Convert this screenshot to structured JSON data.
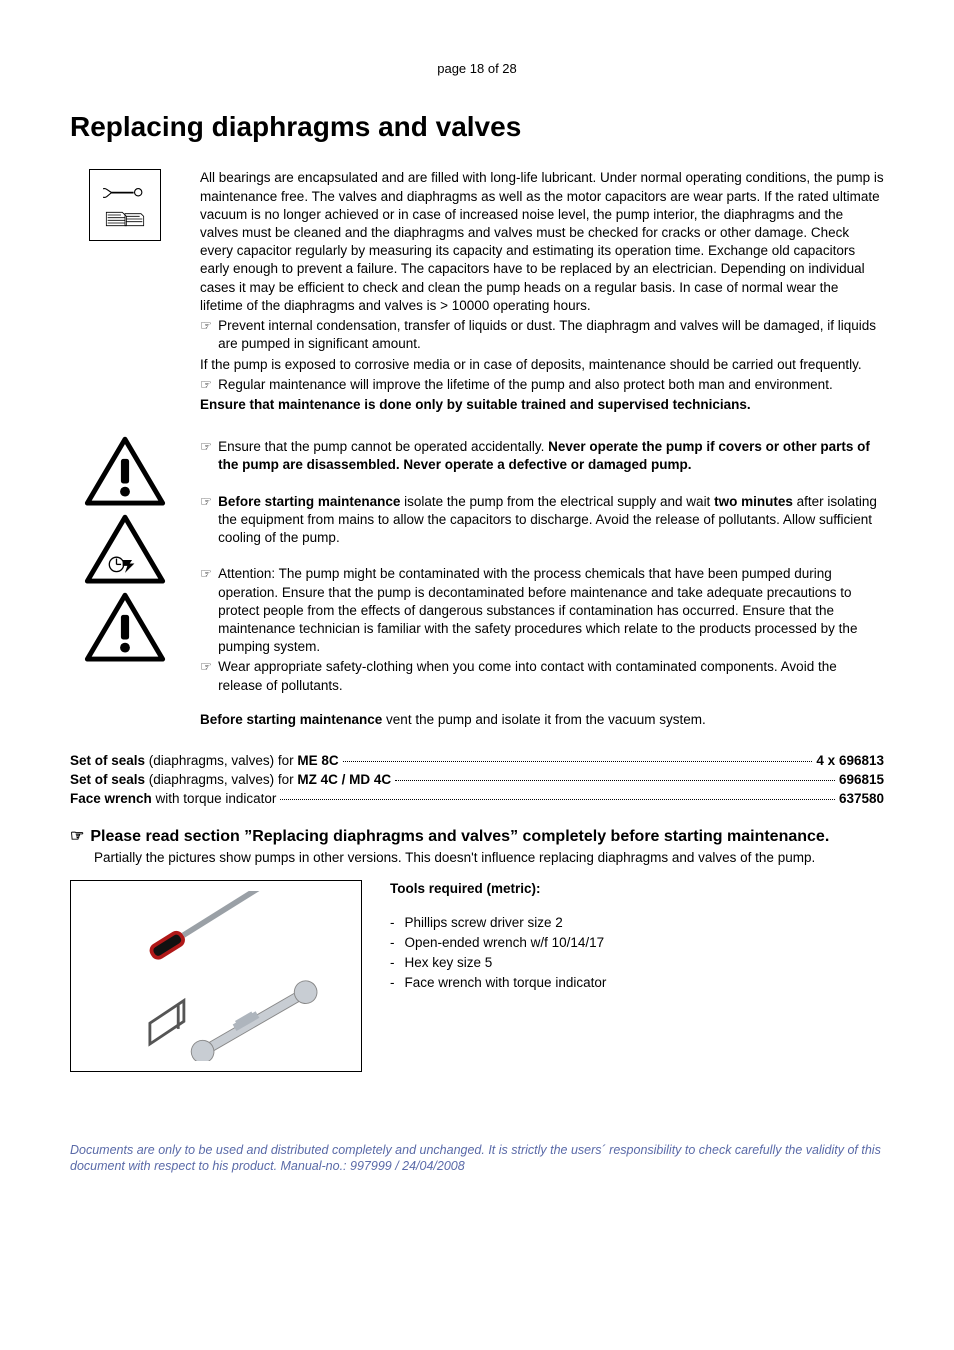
{
  "page_head": "page 18 of 28",
  "title": "Replacing diaphragms and valves",
  "intro_para": "All bearings are encapsulated and are filled with long-life lubricant. Under normal operating conditions, the pump is maintenance free. The valves and diaphragms as well as the motor capacitors are wear parts. If the rated ultimate vacuum is no longer achieved or in case of increased noise level, the pump interior, the diaphragms and the valves must be cleaned and the diaphragms and valves must be checked for cracks or other damage. Check every capacitor regularly by measuring its capacity and estimating its operation time. Exchange old capacitors early enough to prevent a failure. The capacitors have to be replaced by an electrician. Depending on individual cases it may be efficient to check and clean the pump heads on a regular basis. In case of normal wear the lifetime of the diaphragms and valves is > 10000 operating hours.",
  "b1": "Prevent internal condensation, transfer of liquids or dust. The diaphragm and valves will be damaged, if liquids are pumped in significant amount.",
  "p2": "If the pump is exposed to corrosive media or in case of deposits, maintenance should be carried out frequently.",
  "b2": "Regular maintenance will improve the lifetime of the pump and also protect both man and environment.",
  "bold_line": "Ensure that maintenance is done only by suitable trained and supervised technicians.",
  "warn1_pre": "Ensure that the pump cannot be operated accidentally. ",
  "warn1_bold": "Never operate the pump if covers or other parts of the pump are disassembled. Never operate a defective or damaged pump.",
  "warn2_bold1": "Before starting maintenance",
  "warn2_mid": " isolate the pump from the electrical supply and wait ",
  "warn2_bold2": "two minutes",
  "warn2_tail": " after isolating the equipment from mains to allow the capacitors to discharge. Avoid the release of pollutants. Allow sufficient cooling of the pump.",
  "warn3a": "Attention: The pump might be contaminated with the process chemicals that have been pumped during operation. Ensure that the pump is decontaminated before maintenance and take adequate precautions to protect people from the effects of dangerous substances if contamination has occurred. Ensure that the maintenance technician is familiar with the safety procedures which relate to the products processed by the pumping system.",
  "warn3b": "Wear appropriate safety-clothing when you come into contact with contaminated components. Avoid the release of pollutants.",
  "before_bold": "Before starting maintenance",
  "before_tail": "  vent the pump and isolate it from the vacuum system.",
  "seals": [
    {
      "lead_b": "Set of seals",
      "lead_n": " (diaphragms, valves) for ",
      "lead_b2": "ME 8C",
      "tail_b": "4 x 696813"
    },
    {
      "lead_b": "Set of seals",
      "lead_n": " (diaphragms, valves) for ",
      "lead_b2": "MZ 4C / MD 4C",
      "tail_b": "696815"
    },
    {
      "lead_b": "Face wrench",
      "lead_n": " with torque indicator",
      "lead_b2": "",
      "tail_b": "637580"
    }
  ],
  "read_section": "Please read section ”Replacing diaphragms and valves” completely before starting maintenance.",
  "read_tail": "Partially the pictures show pumps in other versions. This doesn't influence replacing diaphragms and valves of the pump.",
  "tools_title": "Tools required (metric):",
  "tools": [
    "Phillips screw driver size 2",
    "Open-ended wrench w/f 10/14/17",
    "Hex key size 5",
    "Face wrench with torque indicator"
  ],
  "footer": "Documents are only to be used and distributed completely and unchanged. It is strictly the users´ responsibility to check carefully the validity of this document with respect to his product. Manual-no.: 997999 / 24/04/2008",
  "colors": {
    "footer": "#5a6aa8",
    "text": "#000000"
  }
}
